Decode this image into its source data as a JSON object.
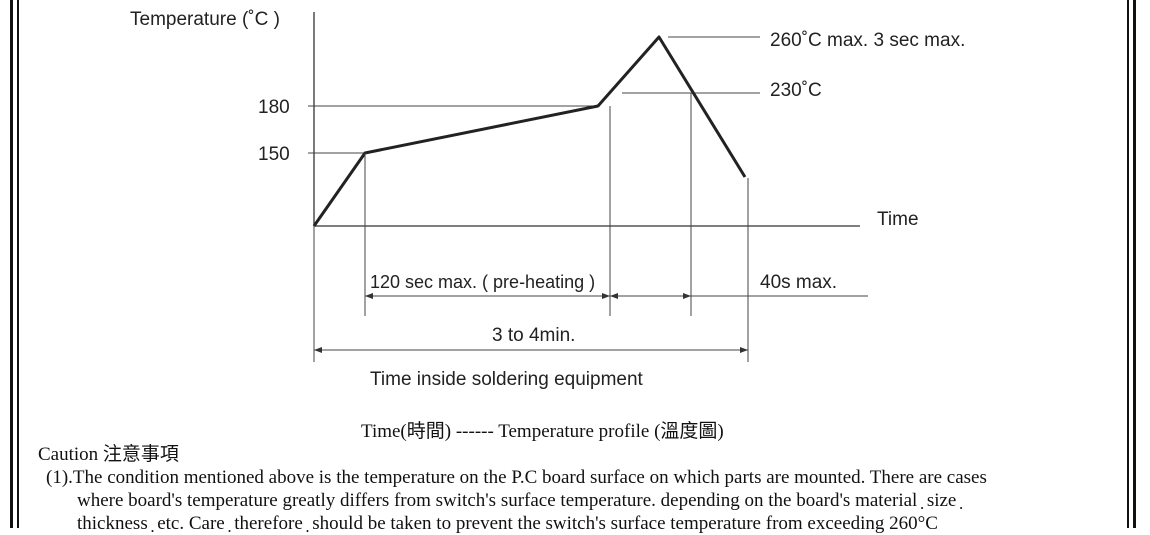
{
  "diagram": {
    "y_axis_label": "Temperature (˚C )",
    "x_axis_label": "Time",
    "tick_180": "180",
    "tick_150": "150",
    "peak_label": "260˚C max. 3 sec max.",
    "label_230": "230˚C",
    "preheat_label": "120 sec max. ( pre-heating )",
    "above230_label": "40s max.",
    "total_label": "3 to 4min.",
    "equipment_label": "Time inside soldering equipment"
  },
  "caption": "Time(時間) ------ Temperature profile (溫度圖)",
  "caution": {
    "heading": "Caution  注意事項",
    "item1_line1": "(1).The condition mentioned above is the temperature on the P.C board surface on which parts are mounted. There are cases",
    "item1_line2": "where board's temperature greatly differs from switch's surface temperature. depending on the board's material ̣ size ̣",
    "item1_line3": "thickness ̣ etc. Care ̣ therefore ̣ should be taken to prevent the switch's surface temperature from exceeding 260°C"
  }
}
